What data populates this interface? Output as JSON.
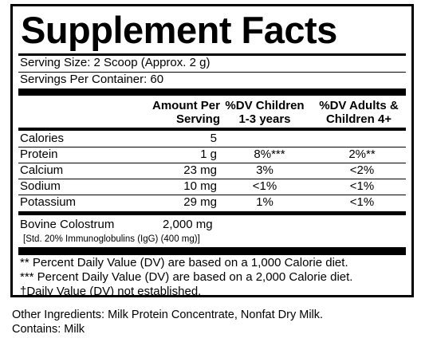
{
  "title": "Supplement Facts",
  "serving_size": "Serving Size: 2 Scoop (Approx. 2 g)",
  "servings_per_container": "Servings Per Container: 60",
  "headers": {
    "amount_line1": "Amount Per",
    "amount_line2": "Serving",
    "children_line1": "%DV Children",
    "children_line2": "1-3 years",
    "adults_line1": "%DV Adults &",
    "adults_line2": "Children 4+"
  },
  "nutrients": [
    {
      "name": "Calories",
      "amount": "5",
      "dv_children": "",
      "dv_adults": ""
    },
    {
      "name": "Protein",
      "amount": "1 g",
      "dv_children": "8%***",
      "dv_adults": "2%**"
    },
    {
      "name": "Calcium",
      "amount": "23 mg",
      "dv_children": "3%",
      "dv_adults": "<2%"
    },
    {
      "name": "Sodium",
      "amount": "10 mg",
      "dv_children": "<1%",
      "dv_adults": "<1%"
    },
    {
      "name": "Potassium",
      "amount": "29 mg",
      "dv_children": "1%",
      "dv_adults": "<1%"
    }
  ],
  "colostrum": {
    "name": "Bovine Colostrum",
    "amount": "2,000 mg",
    "detail": "[Std. 20% Immunoglobulins (IgG) (400 mg)]"
  },
  "footnotes": [
    "** Percent Daily Value (DV) are based on a 1,000 Calorie diet.",
    "*** Percent Daily Value (DV) are based on a 2,000 Calorie diet.",
    "†Daily Value (DV) not established."
  ],
  "other_ingredients": "Other Ingredients: Milk Protein Concentrate, Nonfat Dry Milk.",
  "contains": "Contains: Milk"
}
